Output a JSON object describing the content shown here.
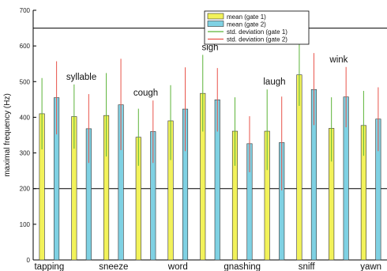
{
  "chart_data": {
    "type": "bar",
    "ylabel": "maximal frequency (Hz)",
    "ylim": [
      0,
      700
    ],
    "yticks": [
      0,
      100,
      200,
      300,
      400,
      500,
      600,
      700
    ],
    "reference_lines": [
      200,
      650
    ],
    "categories": [
      "tapping",
      "syllable",
      "sneeze",
      "cough",
      "word",
      "sigh",
      "gnashing",
      "laugh",
      "sniff",
      "wink",
      "yawn"
    ],
    "label_rows": [
      "bottom",
      "top",
      "bottom",
      "top",
      "bottom",
      "top",
      "bottom",
      "top",
      "bottom",
      "top",
      "bottom"
    ],
    "series": [
      {
        "name": "mean (gate 1)",
        "color": "#f2f25a",
        "values": [
          410,
          402,
          405,
          344,
          390,
          467,
          361,
          361,
          519,
          369,
          377
        ]
      },
      {
        "name": "mean (gate 2)",
        "color": "#7fd1e3",
        "values": [
          455,
          368,
          435,
          360,
          423,
          449,
          326,
          329,
          478,
          457,
          395
        ]
      }
    ],
    "error_bars": [
      {
        "name": "std. deviation (gate 1)",
        "color": "#5cb338",
        "low": [
          310,
          312,
          290,
          264,
          280,
          360,
          264,
          252,
          432,
          276,
          292
        ],
        "high": [
          510,
          492,
          524,
          424,
          490,
          575,
          456,
          478,
          618,
          456,
          474
        ]
      },
      {
        "name": "std. deviation (gate 2)",
        "color": "#e8534a",
        "low": [
          352,
          272,
          308,
          272,
          305,
          360,
          246,
          195,
          378,
          372,
          305
        ],
        "high": [
          557,
          465,
          564,
          447,
          540,
          538,
          403,
          458,
          580,
          541,
          484
        ]
      }
    ],
    "legend_position": "top-right",
    "grid": false
  }
}
